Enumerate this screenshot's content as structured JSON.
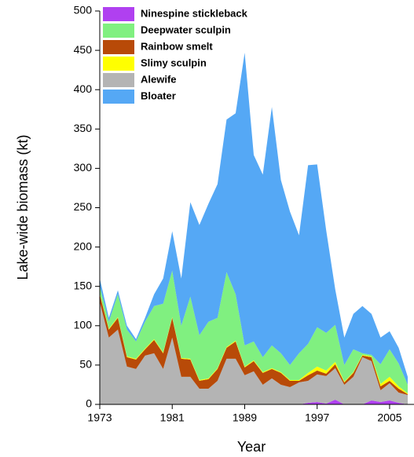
{
  "chart_data": {
    "type": "stacked_area",
    "x_label": "Year",
    "y_label": "Lake-wide biomass (kt)",
    "x": [
      1973,
      1974,
      1975,
      1976,
      1977,
      1978,
      1979,
      1980,
      1981,
      1982,
      1983,
      1984,
      1985,
      1986,
      1987,
      1988,
      1989,
      1990,
      1991,
      1992,
      1993,
      1994,
      1995,
      1996,
      1997,
      1998,
      1999,
      2000,
      2001,
      2002,
      2003,
      2004,
      2005,
      2006,
      2007
    ],
    "series": [
      {
        "name": "Ninespine stickleback",
        "color": "#b040f0",
        "values": [
          0,
          0,
          0,
          0,
          0,
          0,
          0,
          0,
          0,
          0,
          0,
          0,
          0,
          0,
          0,
          0,
          0,
          0,
          0,
          0,
          0,
          0,
          0,
          2,
          3,
          1,
          6,
          0,
          0,
          0,
          5,
          3,
          5,
          2,
          0
        ]
      },
      {
        "name": "Deepwater sculpin",
        "color": "#80f080",
        "values": [
          9,
          9,
          29,
          34,
          22,
          34,
          42,
          62,
          59,
          41,
          79,
          57,
          72,
          64,
          95,
          59,
          27,
          24,
          19,
          29,
          24,
          19,
          34,
          37,
          50,
          48,
          47,
          21,
          29,
          2,
          2,
          25,
          35,
          29,
          11
        ]
      },
      {
        "name": "Rainbow smelt",
        "color": "#b84a08",
        "values": [
          10,
          10,
          15,
          12,
          12,
          8,
          17,
          20,
          25,
          23,
          22,
          10,
          12,
          15,
          14,
          22,
          10,
          13,
          15,
          12,
          15,
          8,
          2,
          7,
          5,
          3,
          5,
          3,
          5,
          2,
          5,
          5,
          3,
          5,
          1
        ]
      },
      {
        "name": "Slimy sculpin",
        "color": "#ffff00",
        "values": [
          1,
          1,
          1,
          1,
          1,
          1,
          1,
          1,
          1,
          1,
          1,
          1,
          1,
          1,
          1,
          1,
          1,
          1,
          1,
          1,
          1,
          1,
          1,
          3,
          5,
          4,
          3,
          1,
          1,
          1,
          1,
          3,
          5,
          3,
          1
        ]
      },
      {
        "name": "Alewife",
        "color": "#b4b4b4",
        "values": [
          130,
          85,
          95,
          48,
          45,
          62,
          65,
          45,
          85,
          35,
          35,
          20,
          20,
          30,
          58,
          58,
          37,
          42,
          25,
          33,
          25,
          22,
          28,
          28,
          35,
          35,
          40,
          25,
          35,
          60,
          50,
          15,
          22,
          13,
          12
        ]
      },
      {
        "name": "Bloater",
        "color": "#55a8f5",
        "values": [
          10,
          5,
          5,
          5,
          3,
          5,
          15,
          32,
          50,
          60,
          120,
          140,
          150,
          170,
          194,
          230,
          372,
          237,
          232,
          303,
          220,
          195,
          150,
          227,
          207,
          130,
          45,
          35,
          45,
          60,
          52,
          34,
          23,
          20,
          10
        ]
      }
    ],
    "xlim": [
      1973,
      2007
    ],
    "xticks": [
      1973,
      1981,
      1989,
      1997,
      2005
    ],
    "ylim": [
      0,
      500
    ],
    "yticks": [
      0,
      50,
      100,
      150,
      200,
      250,
      300,
      350,
      400,
      450,
      500
    ],
    "legend": "top-left"
  }
}
